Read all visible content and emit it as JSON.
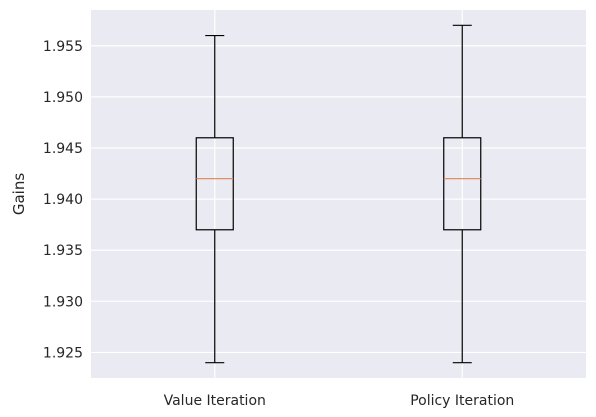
{
  "chart_data": {
    "type": "box",
    "title": "",
    "xlabel": "",
    "ylabel": "Gains",
    "ylim": [
      1.9225,
      1.9585
    ],
    "yticks": [
      1.925,
      1.93,
      1.935,
      1.94,
      1.945,
      1.95,
      1.955
    ],
    "ytick_labels": [
      "1.925",
      "1.930",
      "1.935",
      "1.940",
      "1.945",
      "1.950",
      "1.955"
    ],
    "categories": [
      "Value Iteration",
      "Policy Iteration"
    ],
    "boxes": [
      {
        "category": "Value Iteration",
        "whisker_low": 1.924,
        "q1": 1.937,
        "median": 1.942,
        "q3": 1.946,
        "whisker_high": 1.956
      },
      {
        "category": "Policy Iteration",
        "whisker_low": 1.924,
        "q1": 1.937,
        "median": 1.942,
        "q3": 1.946,
        "whisker_high": 1.957
      }
    ],
    "grid": true,
    "colors": {
      "background": "#eaeaf2",
      "grid": "#ffffff",
      "box": "#000000",
      "median": "#dd8452"
    }
  }
}
